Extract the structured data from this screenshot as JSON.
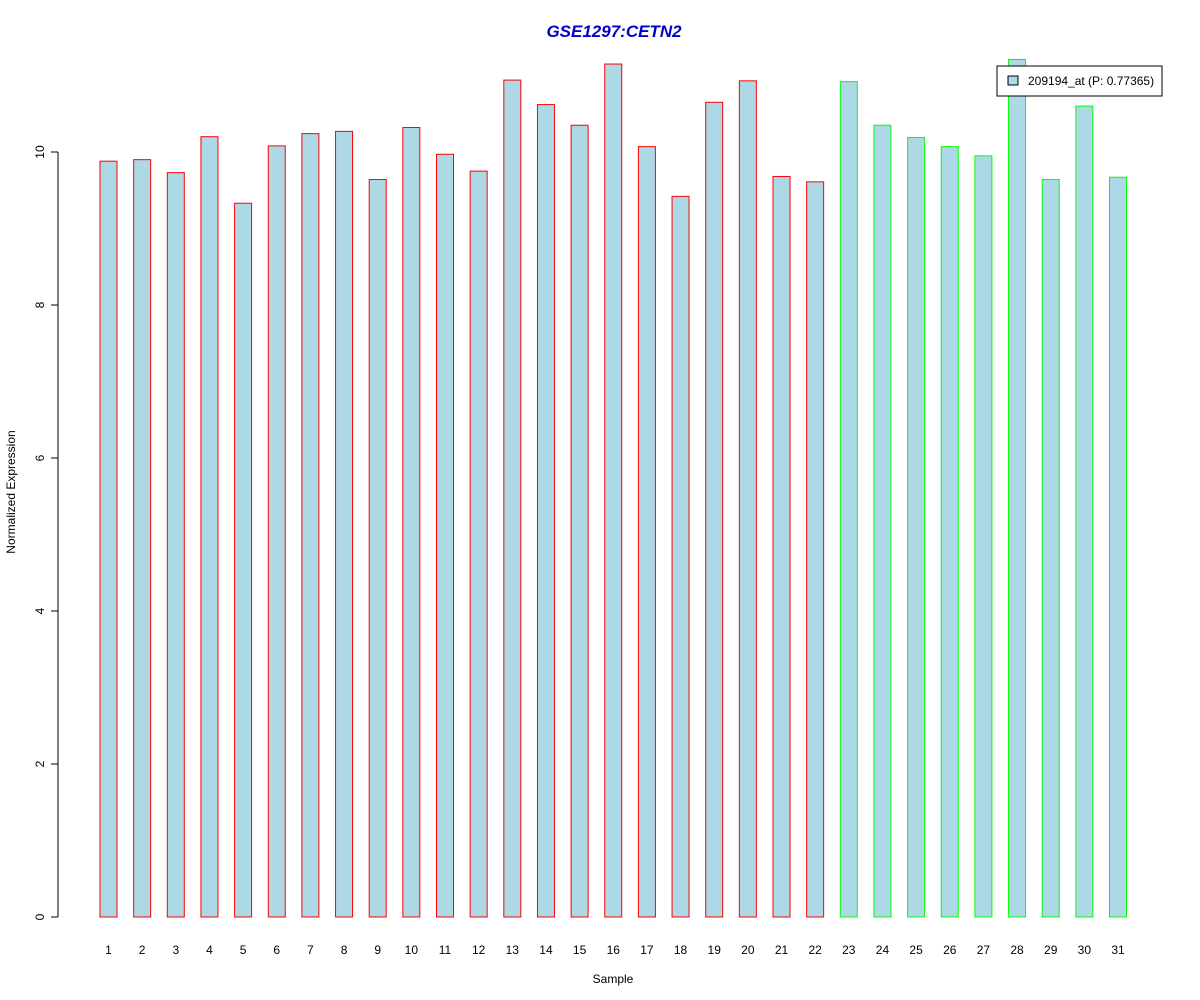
{
  "chart_data": {
    "type": "bar",
    "title": "GSE1297:CETN2",
    "xlabel": "Sample",
    "ylabel": "Normalized Expression",
    "categories": [
      "1",
      "2",
      "3",
      "4",
      "5",
      "6",
      "7",
      "8",
      "9",
      "10",
      "11",
      "12",
      "13",
      "14",
      "15",
      "16",
      "17",
      "18",
      "19",
      "20",
      "21",
      "22",
      "23",
      "24",
      "25",
      "26",
      "27",
      "28",
      "29",
      "30",
      "31"
    ],
    "series": [
      {
        "name": "209194_at (P: 0.77365)",
        "fill_color": "#add8e6",
        "values": [
          9.88,
          9.9,
          9.73,
          10.2,
          9.33,
          10.08,
          10.24,
          10.27,
          9.64,
          10.32,
          9.97,
          9.75,
          10.94,
          10.62,
          10.35,
          11.15,
          10.07,
          9.42,
          10.65,
          10.93,
          9.68,
          9.61,
          10.92,
          10.35,
          10.19,
          10.07,
          9.95,
          11.21,
          9.64,
          10.6,
          9.67
        ],
        "border_colors": [
          "#ff0000",
          "#ff0000",
          "#ff0000",
          "#ff0000",
          "#ff0000",
          "#ff0000",
          "#ff0000",
          "#ff0000",
          "#ff0000",
          "#ff0000",
          "#ff0000",
          "#ff0000",
          "#ff0000",
          "#ff0000",
          "#ff0000",
          "#ff0000",
          "#ff0000",
          "#ff0000",
          "#ff0000",
          "#ff0000",
          "#ff0000",
          "#ff0000",
          "#00ff00",
          "#00ff00",
          "#00ff00",
          "#00ff00",
          "#00ff00",
          "#00ff00",
          "#00ff00",
          "#00ff00",
          "#00ff00"
        ]
      }
    ],
    "yticks": [
      "0",
      "2",
      "4",
      "6",
      "8",
      "10"
    ],
    "ylim": [
      0,
      11.5
    ],
    "grid": false,
    "legend_position": "top-right"
  }
}
